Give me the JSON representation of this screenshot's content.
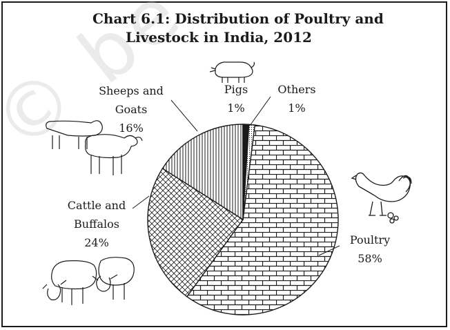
{
  "watermark": "© be",
  "chart_data": {
    "type": "pie",
    "title_line1": "Chart 6.1: Distribution of Poultry and",
    "title_line2": "Livestock in India, 2012",
    "slices": [
      {
        "name": "Poultry",
        "value": 58,
        "label": "58%",
        "pattern": "brick"
      },
      {
        "name": "Cattle and Buffalos",
        "value": 24,
        "label": "24%",
        "pattern": "crosshatch"
      },
      {
        "name": "Sheeps and Goats",
        "value": 16,
        "label": "16%",
        "pattern": "vertical"
      },
      {
        "name": "Pigs",
        "value": 1,
        "label": "1%",
        "pattern": "solid"
      },
      {
        "name": "Others",
        "value": 1,
        "label": "1%",
        "pattern": "dots"
      }
    ]
  },
  "labels": {
    "poultry": {
      "line1": "Poultry",
      "line2": "58%"
    },
    "cattle": {
      "line1": "Cattle and",
      "line2": "Buffalos",
      "line3": "24%"
    },
    "sheep": {
      "line1": "Sheeps and",
      "line2": "Goats",
      "line3": "16%"
    },
    "pigs": {
      "line1": "Pigs",
      "line2": "1%"
    },
    "others": {
      "line1": "Others",
      "line2": "1%"
    }
  },
  "illustrations": [
    "rooster-icon",
    "cattle-icon",
    "goat-sheep-icon",
    "pig-icon"
  ]
}
